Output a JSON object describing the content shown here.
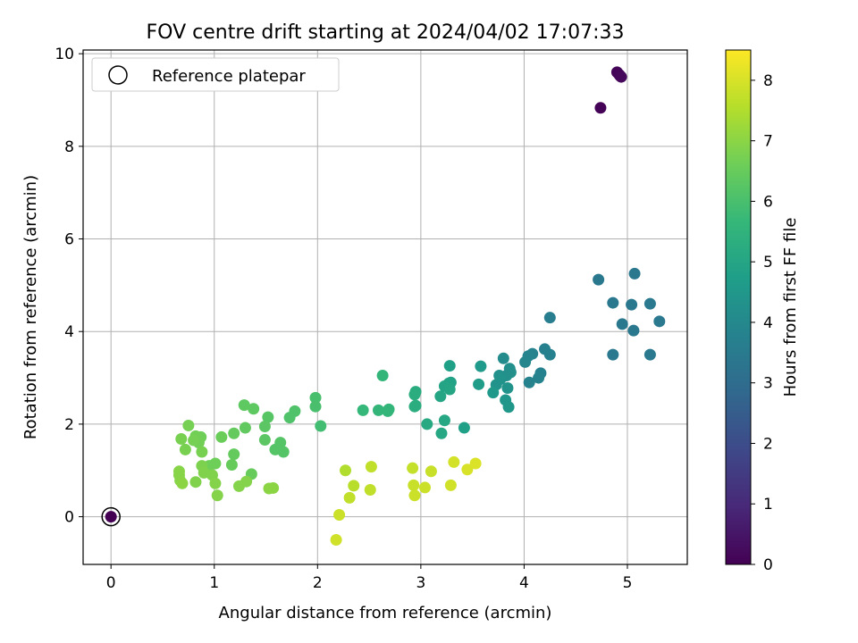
{
  "chart_data": {
    "type": "scatter",
    "title": "FOV centre drift starting at 2024/04/02 17:07:33",
    "xlabel": "Angular distance from reference (arcmin)",
    "ylabel": "Rotation from reference (arcmin)",
    "xlim": [
      -0.27,
      5.58
    ],
    "ylim": [
      -1.03,
      10.08
    ],
    "x_ticks": [
      0,
      1,
      2,
      3,
      4,
      5
    ],
    "y_ticks": [
      0,
      2,
      4,
      6,
      8,
      10
    ],
    "grid": true,
    "legend": {
      "placement": "top-left",
      "entries": [
        "Reference platepar"
      ]
    },
    "colorbar": {
      "label": "Hours from first FF file",
      "colormap": "viridis",
      "range": [
        0,
        8.5
      ],
      "ticks": [
        0,
        1,
        2,
        3,
        4,
        5,
        6,
        7,
        8
      ]
    },
    "reference_point": {
      "x": 0,
      "y": 0
    },
    "points": [
      [
        0.0,
        0.0,
        0.0
      ],
      [
        4.74,
        8.83,
        0.05
      ],
      [
        4.9,
        9.6,
        0.1
      ],
      [
        4.92,
        9.55,
        0.12
      ],
      [
        4.93,
        9.52,
        0.15
      ],
      [
        4.94,
        9.5,
        0.17
      ],
      [
        4.72,
        5.12,
        3.4
      ],
      [
        4.86,
        4.62,
        3.4
      ],
      [
        4.86,
        3.5,
        3.45
      ],
      [
        4.95,
        4.16,
        3.4
      ],
      [
        5.04,
        4.58,
        3.4
      ],
      [
        5.07,
        5.25,
        3.4
      ],
      [
        5.06,
        4.02,
        3.4
      ],
      [
        5.22,
        4.6,
        3.45
      ],
      [
        5.22,
        3.5,
        3.45
      ],
      [
        5.31,
        4.22,
        3.45
      ],
      [
        4.25,
        4.3,
        3.6
      ],
      [
        4.2,
        3.62,
        3.7
      ],
      [
        4.25,
        3.5,
        3.7
      ],
      [
        4.16,
        3.1,
        3.75
      ],
      [
        4.14,
        3.0,
        3.8
      ],
      [
        4.05,
        2.9,
        3.8
      ],
      [
        4.08,
        3.52,
        3.8
      ],
      [
        4.04,
        3.47,
        3.85
      ],
      [
        4.01,
        3.34,
        3.9
      ],
      [
        3.8,
        3.42,
        4.1
      ],
      [
        3.86,
        3.2,
        4.2
      ],
      [
        3.83,
        3.05,
        4.25
      ],
      [
        3.87,
        3.12,
        4.25
      ],
      [
        3.76,
        3.05,
        4.3
      ],
      [
        3.77,
        2.97,
        4.35
      ],
      [
        3.73,
        2.85,
        4.35
      ],
      [
        3.84,
        2.78,
        4.35
      ],
      [
        3.82,
        2.52,
        4.45
      ],
      [
        3.85,
        2.37,
        4.5
      ],
      [
        3.7,
        2.68,
        4.55
      ],
      [
        3.58,
        3.25,
        4.6
      ],
      [
        3.56,
        2.86,
        4.7
      ],
      [
        3.42,
        1.92,
        4.8
      ],
      [
        3.28,
        3.26,
        4.8
      ],
      [
        3.29,
        2.9,
        4.85
      ],
      [
        3.27,
        2.88,
        4.9
      ],
      [
        3.23,
        2.82,
        4.95
      ],
      [
        3.28,
        2.75,
        5.0
      ],
      [
        3.19,
        2.6,
        5.0
      ],
      [
        3.23,
        2.08,
        5.05
      ],
      [
        3.2,
        1.8,
        5.05
      ],
      [
        3.06,
        2.0,
        5.15
      ],
      [
        2.95,
        2.7,
        5.25
      ],
      [
        2.94,
        2.64,
        5.3
      ],
      [
        2.94,
        2.38,
        5.3
      ],
      [
        2.95,
        2.4,
        5.3
      ],
      [
        2.63,
        3.05,
        5.6
      ],
      [
        2.59,
        2.3,
        5.6
      ],
      [
        2.69,
        2.32,
        5.6
      ],
      [
        2.68,
        2.28,
        5.6
      ],
      [
        2.44,
        2.3,
        5.65
      ],
      [
        2.03,
        1.96,
        5.9
      ],
      [
        1.98,
        2.57,
        6.0
      ],
      [
        1.98,
        2.38,
        6.0
      ],
      [
        1.78,
        2.28,
        6.1
      ],
      [
        1.73,
        2.14,
        6.1
      ],
      [
        1.67,
        1.4,
        6.2
      ],
      [
        1.64,
        1.6,
        6.2
      ],
      [
        1.59,
        1.45,
        6.2
      ],
      [
        1.52,
        2.15,
        6.25
      ],
      [
        1.49,
        1.95,
        6.3
      ],
      [
        1.49,
        1.66,
        6.3
      ],
      [
        1.38,
        2.33,
        6.35
      ],
      [
        1.29,
        2.41,
        6.35
      ],
      [
        1.3,
        1.92,
        6.4
      ],
      [
        1.19,
        1.8,
        6.45
      ],
      [
        1.19,
        1.35,
        6.45
      ],
      [
        1.17,
        1.12,
        6.5
      ],
      [
        1.36,
        0.92,
        6.5
      ],
      [
        1.07,
        1.72,
        6.55
      ],
      [
        1.01,
        1.15,
        6.6
      ],
      [
        0.95,
        1.1,
        6.6
      ],
      [
        0.87,
        1.72,
        6.6
      ],
      [
        0.82,
        1.74,
        6.65
      ],
      [
        0.85,
        1.6,
        6.65
      ],
      [
        0.8,
        1.65,
        6.7
      ],
      [
        0.75,
        1.97,
        6.7
      ],
      [
        0.72,
        1.45,
        6.75
      ],
      [
        0.68,
        1.68,
        6.75
      ],
      [
        0.88,
        1.4,
        6.75
      ],
      [
        0.88,
        1.1,
        6.8
      ],
      [
        0.9,
        0.95,
        6.85
      ],
      [
        0.98,
        0.9,
        6.85
      ],
      [
        0.82,
        0.75,
        6.85
      ],
      [
        1.01,
        0.72,
        6.9
      ],
      [
        1.03,
        0.46,
        6.9
      ],
      [
        1.24,
        0.66,
        6.9
      ],
      [
        1.31,
        0.76,
        6.9
      ],
      [
        0.66,
        0.98,
        6.95
      ],
      [
        0.66,
        0.9,
        6.95
      ],
      [
        0.67,
        0.78,
        6.95
      ],
      [
        0.69,
        0.72,
        7.0
      ],
      [
        1.53,
        0.61,
        7.0
      ],
      [
        1.57,
        0.62,
        7.0
      ],
      [
        2.27,
        1.0,
        7.5
      ],
      [
        2.35,
        0.67,
        7.6
      ],
      [
        2.31,
        0.41,
        7.7
      ],
      [
        2.21,
        0.04,
        7.85
      ],
      [
        2.18,
        -0.5,
        7.9
      ],
      [
        2.52,
        1.08,
        7.7
      ],
      [
        2.51,
        0.58,
        7.7
      ],
      [
        2.92,
        1.05,
        7.75
      ],
      [
        2.93,
        0.68,
        7.8
      ],
      [
        2.94,
        0.46,
        7.85
      ],
      [
        3.04,
        0.63,
        7.85
      ],
      [
        3.1,
        0.98,
        7.8
      ],
      [
        3.29,
        0.68,
        7.9
      ],
      [
        3.32,
        1.18,
        7.95
      ],
      [
        3.45,
        1.02,
        8.0
      ],
      [
        3.53,
        1.15,
        8.05
      ]
    ]
  }
}
